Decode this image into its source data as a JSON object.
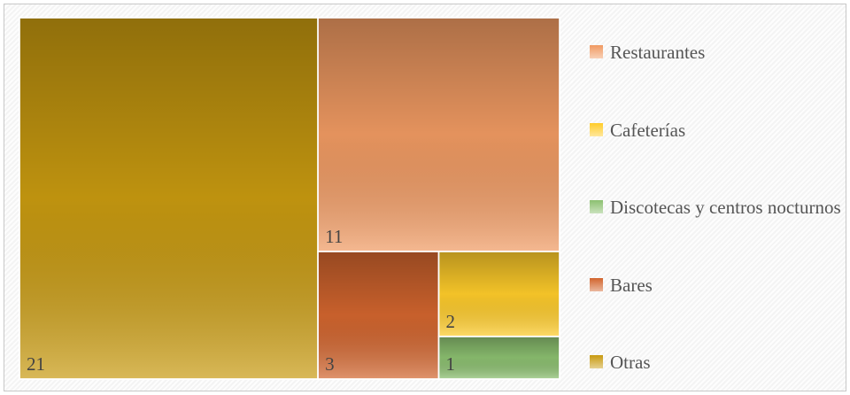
{
  "chart_data": {
    "type": "treemap",
    "categories": [
      "Restaurantes",
      "Cafeterías",
      "Discotecas y centros nocturnos",
      "Bares",
      "Otras"
    ],
    "values": [
      11,
      2,
      1,
      3,
      21
    ],
    "colors": [
      "#f09a62",
      "#ffcc2a",
      "#8cc070",
      "#d2652e",
      "#c89a10"
    ]
  }
}
